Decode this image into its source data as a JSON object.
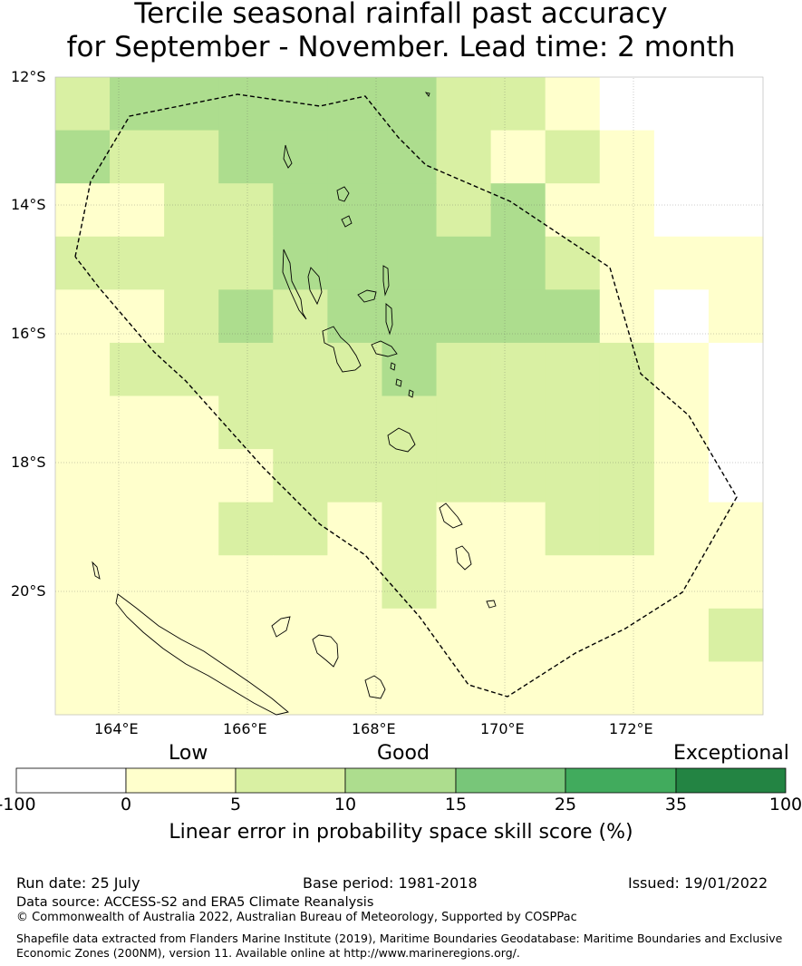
{
  "title": {
    "line1": "Tercile seasonal rainfall past accuracy",
    "line2": "for September - November. Lead time: 2 month"
  },
  "axes": {
    "lat_labels": [
      "12°S",
      "14°S",
      "16°S",
      "18°S",
      "20°S"
    ],
    "lon_labels": [
      "164°E",
      "166°E",
      "168°E",
      "170°E",
      "172°E"
    ]
  },
  "grid": {
    "lon_start": 163.0,
    "lat_start": -12.0,
    "cell_deg": 0.833,
    "cols": 13,
    "rows": 12,
    "classes": [
      [
        2,
        3,
        3,
        3,
        3,
        3,
        3,
        2,
        2,
        1,
        0,
        0,
        0
      ],
      [
        3,
        2,
        2,
        3,
        3,
        3,
        3,
        2,
        1,
        2,
        1,
        0,
        0
      ],
      [
        1,
        1,
        2,
        2,
        3,
        3,
        3,
        2,
        3,
        1,
        1,
        0,
        0
      ],
      [
        2,
        2,
        2,
        2,
        3,
        3,
        3,
        3,
        3,
        2,
        1,
        1,
        1
      ],
      [
        1,
        1,
        2,
        3,
        2,
        3,
        3,
        3,
        3,
        3,
        1,
        0,
        1
      ],
      [
        1,
        2,
        2,
        2,
        2,
        2,
        3,
        2,
        2,
        2,
        2,
        1,
        0
      ],
      [
        1,
        1,
        1,
        2,
        2,
        2,
        2,
        2,
        2,
        2,
        2,
        1,
        0
      ],
      [
        1,
        1,
        1,
        1,
        2,
        2,
        2,
        2,
        2,
        2,
        2,
        1,
        0
      ],
      [
        1,
        1,
        1,
        2,
        2,
        1,
        2,
        1,
        1,
        2,
        2,
        1,
        1
      ],
      [
        1,
        1,
        1,
        1,
        1,
        1,
        2,
        1,
        1,
        1,
        1,
        1,
        1
      ],
      [
        1,
        1,
        1,
        1,
        1,
        1,
        1,
        1,
        1,
        1,
        1,
        1,
        2
      ],
      [
        1,
        1,
        1,
        1,
        1,
        1,
        1,
        1,
        1,
        1,
        1,
        1,
        1
      ]
    ]
  },
  "colorbar": {
    "words": [
      "Low",
      "Good",
      "Exceptional"
    ],
    "ticks": [
      "-100",
      "0",
      "5",
      "10",
      "15",
      "25",
      "35",
      "100"
    ],
    "colors": [
      "#ffffff",
      "#ffffcc",
      "#d9f0a3",
      "#addd8e",
      "#78c679",
      "#41ab5d",
      "#238443"
    ],
    "caption": "Linear error in probability space skill score (%)"
  },
  "footer": {
    "run_date": "Run date: 25 July",
    "base_period": "Base period: 1981-2018",
    "issued": "Issued: 19/01/2022",
    "data_source": "Data source: ACCESS-S2 and ERA5 Climate Reanalysis",
    "copyright": "© Commonwealth of Australia 2022, Australian Bureau of Meteorology, Supported by COSPPac",
    "shapefile": "Shapefile data extracted from Flanders Marine Institute (2019), Maritime Boundaries Geodatabase: Maritime Boundaries and Exclusive Economic Zones (200NM), version 11. Available online at http://www.marineregions.org/."
  }
}
